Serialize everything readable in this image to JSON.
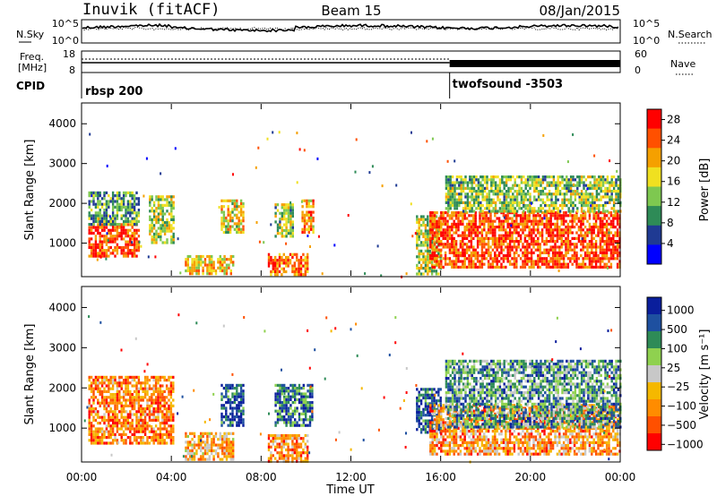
{
  "header": {
    "station": "Inuvik (fitACF)",
    "beam": "Beam 15",
    "date": "08/Jan/2015"
  },
  "noise_panel": {
    "left_label": "N.Sky",
    "right_label": "N.Search",
    "left_ticks": [
      "10^5",
      "10^0"
    ],
    "right_ticks": [
      "10^5",
      "10^0"
    ]
  },
  "freq_panel": {
    "label_top": "Freq.",
    "label_unit": "[MHz]",
    "left_ticks": [
      "18",
      "8"
    ],
    "right_ticks": [
      "60",
      "0"
    ],
    "right_label": "Nave",
    "right_tick_values": [
      60,
      0
    ]
  },
  "cpid": {
    "label": "CPID",
    "segments": [
      {
        "text": "rbsp 200",
        "start_hour": 0
      },
      {
        "text": "twofsound -3503",
        "start_hour": 16.4
      }
    ]
  },
  "colors": {
    "power_scale": [
      "#0000ff",
      "#1f3a93",
      "#2e8b57",
      "#7ec850",
      "#f0e020",
      "#f5a000",
      "#ff5000",
      "#ff0000"
    ],
    "velocity_scale": [
      "#ff0000",
      "#ff5000",
      "#ff8c00",
      "#f5b800",
      "#c8c8c8",
      "#8fd14f",
      "#2e8b57",
      "#1e50a0",
      "#0a1e9c"
    ]
  },
  "chart_data": [
    {
      "type": "heatmap",
      "panel": "power",
      "xlabel": "",
      "ylabel": "Slant Range [km]",
      "x_range_hours": [
        0,
        24
      ],
      "ylim": [
        180,
        4500
      ],
      "yticks": [
        1000,
        2000,
        3000,
        4000
      ],
      "ytick_labels": [
        "1000",
        "2000",
        "3000",
        "4000"
      ],
      "colorbar_label": "Power [dB]",
      "colorbar_ticks": [
        "4",
        "8",
        "12",
        "16",
        "20",
        "24",
        "28"
      ],
      "colorbar_values": [
        4,
        8,
        12,
        16,
        20,
        24,
        28
      ],
      "colorbar_range": [
        0,
        30
      ],
      "echo_regions": [
        {
          "t0": 0.3,
          "t1": 2.6,
          "r0": 700,
          "r1": 1500,
          "level": 0.85
        },
        {
          "t0": 0.3,
          "t1": 2.6,
          "r0": 1500,
          "r1": 2300,
          "level": 0.35
        },
        {
          "t0": 3.0,
          "t1": 4.1,
          "r0": 1000,
          "r1": 2200,
          "level": 0.5
        },
        {
          "t0": 4.6,
          "t1": 6.8,
          "r0": 200,
          "r1": 700,
          "level": 0.6
        },
        {
          "t0": 6.2,
          "t1": 7.2,
          "r0": 1300,
          "r1": 2100,
          "level": 0.55
        },
        {
          "t0": 8.3,
          "t1": 10.1,
          "r0": 200,
          "r1": 750,
          "level": 0.75
        },
        {
          "t0": 8.6,
          "t1": 9.4,
          "r0": 1200,
          "r1": 2000,
          "level": 0.45
        },
        {
          "t0": 9.8,
          "t1": 10.3,
          "r0": 1300,
          "r1": 2100,
          "level": 0.7
        },
        {
          "t0": 14.9,
          "t1": 16.0,
          "r0": 200,
          "r1": 1700,
          "level": 0.5
        },
        {
          "t0": 15.5,
          "t1": 24.0,
          "r0": 400,
          "r1": 1800,
          "level": 0.85
        },
        {
          "t0": 16.2,
          "t1": 24.0,
          "r0": 1800,
          "r1": 2700,
          "level": 0.45
        }
      ]
    },
    {
      "type": "heatmap",
      "panel": "velocity",
      "xlabel": "Time UT",
      "ylabel": "Slant Range [km]",
      "x_range_hours": [
        0,
        24
      ],
      "xticks": [
        0,
        4,
        8,
        12,
        16,
        20,
        24
      ],
      "xtick_labels": [
        "00:00",
        "04:00",
        "08:00",
        "12:00",
        "16:00",
        "20:00",
        "00:00"
      ],
      "ylim": [
        180,
        4500
      ],
      "yticks": [
        1000,
        2000,
        3000,
        4000
      ],
      "ytick_labels": [
        "1000",
        "2000",
        "3000",
        "4000"
      ],
      "colorbar_label": "Velocity [m s⁻¹]",
      "colorbar_ticks": [
        "1000",
        "500",
        "100",
        "25",
        "−25",
        "−100",
        "−500",
        "−1000"
      ],
      "colorbar_values": [
        1000,
        500,
        100,
        25,
        -25,
        -100,
        -500,
        -1000
      ],
      "echo_regions": [
        {
          "t0": 0.3,
          "t1": 4.1,
          "r0": 600,
          "r1": 2300,
          "level": 0.25
        },
        {
          "t0": 4.6,
          "t1": 6.8,
          "r0": 200,
          "r1": 900,
          "level": 0.35
        },
        {
          "t0": 6.2,
          "t1": 7.2,
          "r0": 1100,
          "r1": 2100,
          "level": 0.85
        },
        {
          "t0": 8.3,
          "t1": 10.1,
          "r0": 200,
          "r1": 850,
          "level": 0.3
        },
        {
          "t0": 8.6,
          "t1": 10.3,
          "r0": 1100,
          "r1": 2100,
          "level": 0.8
        },
        {
          "t0": 14.9,
          "t1": 16.0,
          "r0": 900,
          "r1": 2000,
          "level": 0.85
        },
        {
          "t0": 15.5,
          "t1": 24.0,
          "r0": 350,
          "r1": 1600,
          "level": 0.3
        },
        {
          "t0": 16.2,
          "t1": 24.0,
          "r0": 1000,
          "r1": 2700,
          "level": 0.7
        }
      ]
    }
  ]
}
